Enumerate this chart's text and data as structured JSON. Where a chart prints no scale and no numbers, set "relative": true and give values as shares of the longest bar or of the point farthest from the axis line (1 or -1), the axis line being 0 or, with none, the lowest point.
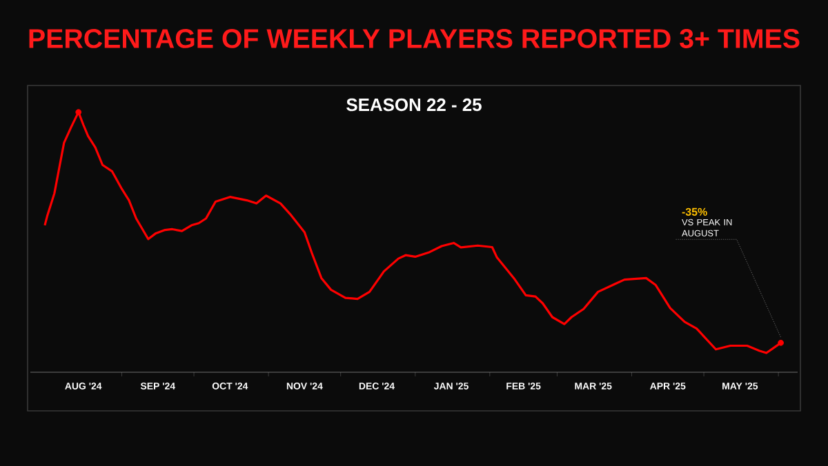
{
  "chart_data": {
    "type": "line",
    "title": "PERCENTAGE OF WEEKLY PLAYERS REPORTED 3+ TIMES",
    "subtitle": "SEASON 22 - 25",
    "relative": true,
    "xlim": [
      "2024-07-25",
      "2025-06-09"
    ],
    "xticks": [
      {
        "value": "2024-08-16",
        "label": "AUG '24"
      },
      {
        "value": "2024-09-01",
        "label": null
      },
      {
        "value": "2024-09-16",
        "label": "SEP '24"
      },
      {
        "value": "2024-10-01",
        "label": null
      },
      {
        "value": "2024-10-16",
        "label": "OCT '24"
      },
      {
        "value": "2024-11-01",
        "label": null
      },
      {
        "value": "2024-11-16",
        "label": "NOV '24"
      },
      {
        "value": "2024-12-01",
        "label": null
      },
      {
        "value": "2024-12-16",
        "label": "DEC '24"
      },
      {
        "value": "2025-01-01",
        "label": null
      },
      {
        "value": "2025-01-16",
        "label": "JAN '25"
      },
      {
        "value": "2025-02-01",
        "label": null
      },
      {
        "value": "2025-02-15",
        "label": "FEB '25"
      },
      {
        "value": "2025-03-01",
        "label": null
      },
      {
        "value": "2025-03-16",
        "label": "MAR '25"
      },
      {
        "value": "2025-04-01",
        "label": null
      },
      {
        "value": "2025-04-16",
        "label": "APR '25"
      },
      {
        "value": "2025-05-01",
        "label": null
      },
      {
        "value": "2025-05-16",
        "label": "MAY '25"
      },
      {
        "value": "2025-06-01",
        "label": null
      }
    ],
    "series": [
      {
        "color": "#ff0000",
        "x": [
          "2024-07-31",
          "2024-08-01",
          "2024-08-04",
          "2024-08-06",
          "2024-08-08",
          "2024-08-11",
          "2024-08-14",
          "2024-08-16",
          "2024-08-18",
          "2024-08-21",
          "2024-08-24",
          "2024-08-28",
          "2024-09-01",
          "2024-09-04",
          "2024-09-07",
          "2024-09-12",
          "2024-09-15",
          "2024-09-19",
          "2024-09-22",
          "2024-09-26",
          "2024-09-30",
          "2024-10-03",
          "2024-10-06",
          "2024-10-10",
          "2024-10-16",
          "2024-10-23",
          "2024-10-27",
          "2024-10-31",
          "2024-11-06",
          "2024-11-10",
          "2024-11-16",
          "2024-11-19",
          "2024-11-23",
          "2024-11-27",
          "2024-12-03",
          "2024-12-08",
          "2024-12-13",
          "2024-12-19",
          "2024-12-25",
          "2024-12-28",
          "2025-01-01",
          "2025-01-07",
          "2025-01-12",
          "2025-01-17",
          "2025-01-20",
          "2025-01-27",
          "2025-02-02",
          "2025-02-04",
          "2025-02-11",
          "2025-02-16",
          "2025-02-20",
          "2025-02-23",
          "2025-02-27",
          "2025-03-04",
          "2025-03-07",
          "2025-03-12",
          "2025-03-18",
          "2025-03-25",
          "2025-03-29",
          "2025-04-07",
          "2025-04-11",
          "2025-04-17",
          "2025-04-23",
          "2025-04-28",
          "2025-05-06",
          "2025-05-12",
          "2025-05-19",
          "2025-05-24",
          "2025-05-27",
          "2025-06-02"
        ],
        "values": [
          0.565,
          0.6,
          0.688,
          0.785,
          0.882,
          0.943,
          1.0,
          0.952,
          0.908,
          0.864,
          0.797,
          0.772,
          0.705,
          0.661,
          0.591,
          0.512,
          0.533,
          0.547,
          0.55,
          0.543,
          0.565,
          0.573,
          0.591,
          0.656,
          0.674,
          0.661,
          0.649,
          0.679,
          0.649,
          0.608,
          0.538,
          0.459,
          0.362,
          0.317,
          0.286,
          0.282,
          0.309,
          0.388,
          0.437,
          0.45,
          0.444,
          0.462,
          0.485,
          0.497,
          0.48,
          0.487,
          0.481,
          0.441,
          0.362,
          0.296,
          0.291,
          0.265,
          0.212,
          0.185,
          0.212,
          0.243,
          0.309,
          0.339,
          0.356,
          0.362,
          0.335,
          0.247,
          0.194,
          0.168,
          0.088,
          0.102,
          0.102,
          0.083,
          0.074,
          0.113
        ]
      },
      {
        "type": "scatter",
        "color": "#ff0000",
        "x": [
          "2024-08-14",
          "2025-06-02"
        ],
        "values": [
          1.0,
          0.113
        ]
      }
    ],
    "annotations": [
      "-35%",
      "VS PEAK IN AUGUST"
    ]
  }
}
